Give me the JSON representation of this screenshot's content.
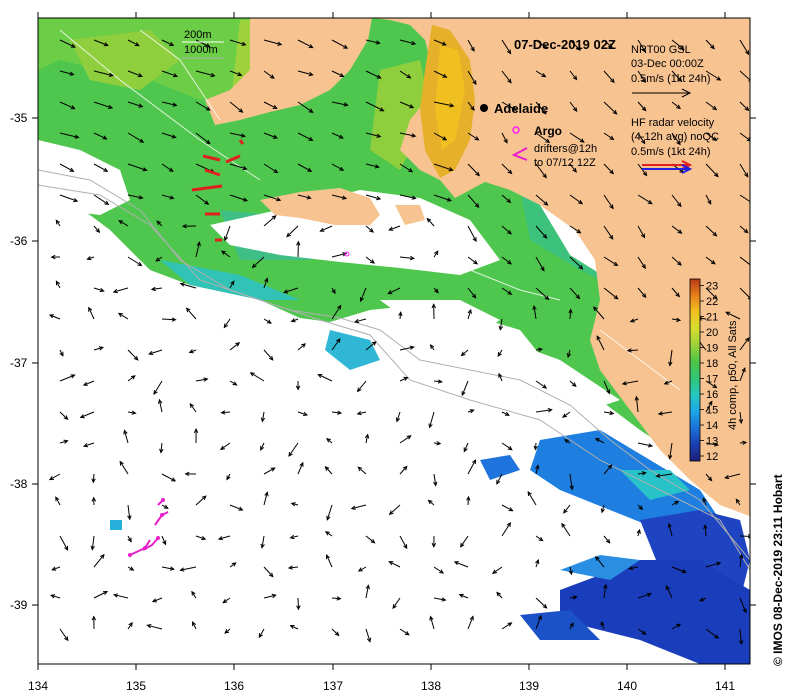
{
  "title": "07-Dec-2019 02Z",
  "credit": "© IMOS 08-Dec-2019 23:11 Hobart",
  "depth_legend": [
    "200m",
    "1000m"
  ],
  "city": "Adelaide",
  "legend": {
    "argo": "Argo",
    "drifters_line1": "drifters@12h",
    "drifters_line2": "to 07/12 12Z",
    "nrt_line1": "NRT00 GSL",
    "nrt_line2": "03-Dec 00:00Z",
    "nrt_line3": "0.5m/s (1kt 24h)",
    "hf_line1": "HF radar velocity",
    "hf_line2": "(4-12h avg) noQC",
    "hf_line3": "0.5m/s (1kt 24h)"
  },
  "colorbar": {
    "label": "4h comp, p50, All Sats",
    "ticks": [
      "12",
      "13",
      "14",
      "15",
      "16",
      "17",
      "18",
      "19",
      "20",
      "21",
      "22",
      "23"
    ],
    "colors": [
      "#1e1e78",
      "#1a3fb0",
      "#1b6fd8",
      "#1ea5e6",
      "#25c7c2",
      "#30c77a",
      "#4fc544",
      "#9fd23a",
      "#d8dc2e",
      "#f0c020",
      "#e6801c",
      "#b83a16"
    ]
  },
  "axes": {
    "lon_ticks": [
      "134",
      "135",
      "136",
      "137",
      "138",
      "139",
      "140",
      "141"
    ],
    "lat_ticks": [
      "-35",
      "-36",
      "-37",
      "-38",
      "-39"
    ]
  },
  "colors": {
    "land": "#f7c391",
    "ocean_missing": "#ffffff",
    "drifter": "#e81ecb",
    "argo": "#ff1eff",
    "hf_red": "#e02020",
    "hf_blue": "#2020e0"
  }
}
